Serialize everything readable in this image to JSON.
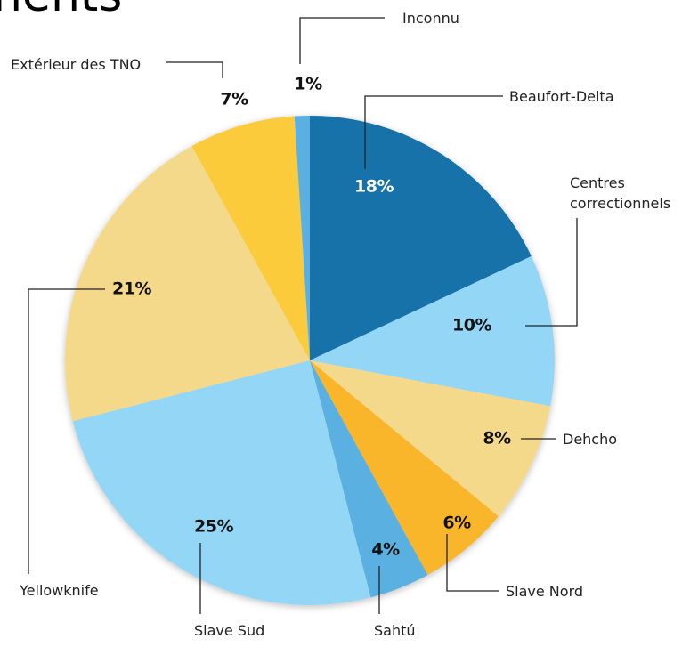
{
  "chart_data": {
    "type": "pie",
    "title": "nents",
    "categories": [
      "Beaufort-Delta",
      "Centres correctionnels",
      "Dehcho",
      "Slave Nord",
      "Sahtú",
      "Slave Sud",
      "Yellowknife",
      "Extérieur des TNO",
      "Inconnu"
    ],
    "values": [
      18,
      10,
      8,
      6,
      4,
      25,
      21,
      7,
      1
    ],
    "value_labels": [
      "18%",
      "10%",
      "8%",
      "6%",
      "4%",
      "25%",
      "21%",
      "7%",
      "1%"
    ],
    "colors": [
      "#1272a8",
      "#94d6f5",
      "#f5d98a",
      "#f9b62a",
      "#5ab0e0",
      "#94d6f5",
      "#f5d98a",
      "#fccb3a",
      "#5ab0e0"
    ]
  }
}
